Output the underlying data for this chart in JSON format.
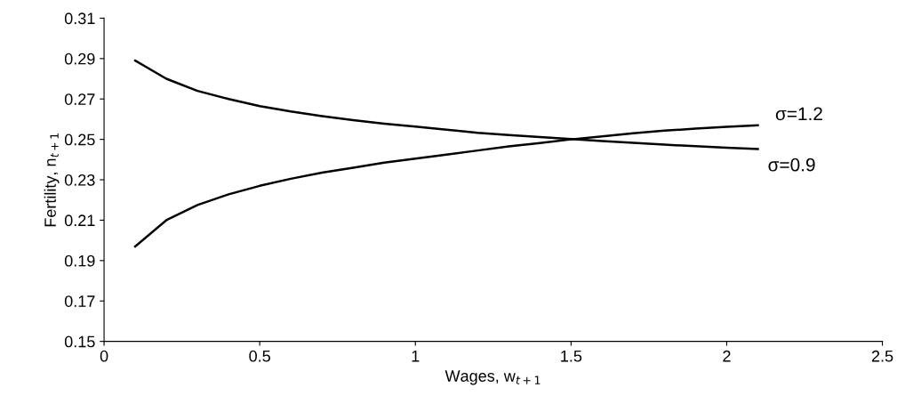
{
  "chart_data": {
    "type": "line",
    "xlabel": "Wages, w$_{t+1}$",
    "ylabel": "Fertility, n$_{t+1}$",
    "x": [
      0.1,
      0.2,
      0.3,
      0.4,
      0.5,
      0.6,
      0.7,
      0.8,
      0.9,
      1.0,
      1.1,
      1.2,
      1.3,
      1.4,
      1.5,
      1.6,
      1.7,
      1.8,
      1.9,
      2.0,
      2.1
    ],
    "series": [
      {
        "name": "σ=0.9",
        "color": "#000000",
        "values": [
          0.289,
          0.28,
          0.274,
          0.27,
          0.2665,
          0.2638,
          0.2615,
          0.2595,
          0.2578,
          0.2563,
          0.2548,
          0.2533,
          0.2522,
          0.2512,
          0.2502,
          0.2492,
          0.2483,
          0.2474,
          0.2466,
          0.2459,
          0.2452
        ]
      },
      {
        "name": "σ=1.2",
        "color": "#000000",
        "values": [
          0.197,
          0.21,
          0.2175,
          0.2228,
          0.227,
          0.2305,
          0.2335,
          0.236,
          0.2385,
          0.2405,
          0.2425,
          0.2445,
          0.2465,
          0.2482,
          0.25,
          0.2515,
          0.253,
          0.2543,
          0.2553,
          0.2562,
          0.257
        ]
      }
    ],
    "xlim": [
      0,
      2.5
    ],
    "xticks": [
      0,
      0.5,
      1,
      1.5,
      2,
      2.5
    ],
    "ylim": [
      0.15,
      0.31
    ],
    "yticks": [
      0.15,
      0.17,
      0.19,
      0.21,
      0.23,
      0.25,
      0.27,
      0.29,
      0.31
    ],
    "grid": false,
    "legend": false,
    "marker": "none",
    "line_style": "solid"
  }
}
